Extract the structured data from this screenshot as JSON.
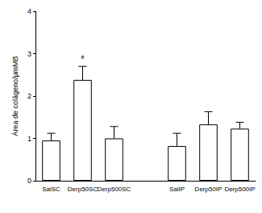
{
  "chart_data": {
    "type": "bar",
    "y_label": "Área de colágeno/µmMB",
    "categories": [
      "SalSC",
      "Derp50SC",
      "Derp500SC",
      null,
      "SalIP",
      "Derp50IP",
      "Derp500IP"
    ],
    "values": [
      0.95,
      2.38,
      1.0,
      null,
      0.82,
      1.33,
      1.23
    ],
    "errors": [
      0.17,
      0.32,
      0.28,
      null,
      0.3,
      0.3,
      0.15
    ],
    "color": "#ffffff",
    "ylim": [
      0,
      4
    ],
    "yticks": [
      0,
      1,
      2,
      3,
      4
    ],
    "grid": false,
    "annotations": [
      {
        "category": "Derp50SC",
        "text": "*"
      }
    ]
  }
}
